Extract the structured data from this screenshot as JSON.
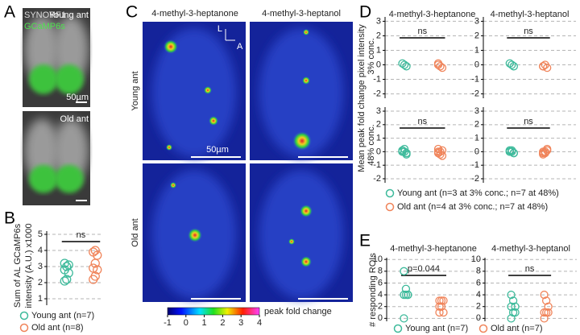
{
  "panel_a": {
    "letter": "A",
    "stain_1": "SYNORF1",
    "stain_2": "GCaMP6s",
    "top_label": "Young ant",
    "scale_bar": "50µm",
    "bottom_label": "Old ant"
  },
  "panel_b": {
    "letter": "B"
  },
  "panel_c": {
    "letter": "C",
    "columns": [
      "4-methyl-3-heptanone",
      "4-methyl-3-heptanol"
    ],
    "rows": [
      "Young ant",
      "Old ant"
    ],
    "orientation": [
      "L",
      "A"
    ],
    "scale_bar": "50µm",
    "colorbar": {
      "label": "peak fold change",
      "xlim": [
        -1,
        4
      ],
      "xticks": [
        -1,
        0,
        1,
        2,
        3,
        4
      ]
    }
  },
  "panel_d": {
    "letter": "D",
    "ylabel": "Mean peak fold change pixel intensity"
  },
  "panel_e": {
    "letter": "E"
  },
  "chart_data": [
    {
      "type": "strip",
      "ylabel": [
        "Sum of AL GCaMP6s",
        "intensity (A.U.) x1000"
      ],
      "ylim": [
        0.6,
        5.2
      ],
      "yticks": [
        1,
        2,
        3,
        4,
        5
      ],
      "grid": true,
      "annotation": "ns",
      "series": [
        {
          "name": "Young ant (n=7)",
          "color": "#3dba9b",
          "values": [
            2.1,
            2.2,
            2.6,
            2.8,
            3.0,
            3.1,
            3.2
          ]
        },
        {
          "name": "Old ant (n=8)",
          "color": "#f0845a",
          "values": [
            2.2,
            2.4,
            2.8,
            2.9,
            3.2,
            3.7,
            3.9,
            4.0
          ]
        }
      ]
    },
    {
      "type": "strip",
      "title": "4-methyl-3-heptanone",
      "ylabel": "3% conc.",
      "ylim": [
        -2.3,
        3.3
      ],
      "yticks": [
        -2,
        -1,
        0,
        1,
        2,
        3
      ],
      "grid": true,
      "annotation": "ns",
      "series": [
        {
          "name": "Young ant (n=3 at 3% conc.; n=7 at 48%)",
          "color": "#3dba9b",
          "values": [
            0.1,
            0,
            -0.1
          ]
        },
        {
          "name": "Old ant (n=4 at 3% conc.; n=7 at 48%)",
          "color": "#f0845a",
          "values": [
            0,
            -0.1,
            -0.2,
            0.1
          ]
        }
      ]
    },
    {
      "type": "strip",
      "title": "4-methyl-3-heptanol",
      "ylim": [
        -2.3,
        3.3
      ],
      "yticks": [
        -2,
        -1,
        0,
        1,
        2,
        3
      ],
      "grid": true,
      "annotation": "ns",
      "series": [
        {
          "color": "#3dba9b",
          "values": [
            0.1,
            0,
            -0.1
          ]
        },
        {
          "color": "#f0845a",
          "values": [
            -0.1,
            0,
            -0.2,
            -0.1
          ]
        }
      ]
    },
    {
      "type": "strip",
      "ylabel": "48% conc.",
      "ylim": [
        -2.3,
        3.3
      ],
      "yticks": [
        -2,
        -1,
        0,
        1,
        2,
        3
      ],
      "grid": true,
      "annotation": "ns",
      "series": [
        {
          "color": "#3dba9b",
          "values": [
            0.1,
            0,
            -0.1,
            0,
            0.2,
            -0.2,
            0
          ]
        },
        {
          "color": "#f0845a",
          "values": [
            0,
            -0.2,
            0.1,
            -0.1,
            0,
            -0.3,
            0.2
          ]
        }
      ]
    },
    {
      "type": "strip",
      "ylim": [
        -2.3,
        3.3
      ],
      "yticks": [
        -2,
        -1,
        0,
        1,
        2,
        3
      ],
      "grid": true,
      "annotation": "ns",
      "series": [
        {
          "color": "#3dba9b",
          "values": [
            0.1,
            0,
            -0.1,
            0,
            0.1,
            -0.1,
            0
          ]
        },
        {
          "color": "#f0845a",
          "values": [
            0,
            -0.1,
            0.1,
            -0.2,
            0,
            0.2,
            -0.1
          ]
        }
      ]
    },
    {
      "type": "strip",
      "title": "4-methyl-3-heptanone",
      "ylabel": "# responding ROIs",
      "ylim": [
        -0.5,
        10.3
      ],
      "yticks": [
        0,
        2,
        4,
        6,
        8,
        10
      ],
      "grid": true,
      "annotation": "p=0.044",
      "series": [
        {
          "name": "Young ant (n=7)",
          "color": "#3dba9b",
          "values": [
            8,
            5,
            4,
            4,
            4,
            4,
            0
          ]
        },
        {
          "name": "Old ant (n=7)",
          "color": "#f0845a",
          "values": [
            3,
            3,
            3,
            2,
            2,
            1,
            1
          ]
        }
      ]
    },
    {
      "type": "strip",
      "title": "4-methyl-3-heptanol",
      "ylim": [
        -0.5,
        10.3
      ],
      "yticks": [
        0,
        2,
        4,
        6,
        8,
        10
      ],
      "grid": true,
      "annotation": "ns",
      "series": [
        {
          "color": "#3dba9b",
          "values": [
            4,
            3,
            2,
            2,
            1,
            1,
            0
          ]
        },
        {
          "color": "#f0845a",
          "values": [
            4,
            3,
            2,
            1,
            1,
            1,
            0
          ]
        }
      ]
    }
  ]
}
